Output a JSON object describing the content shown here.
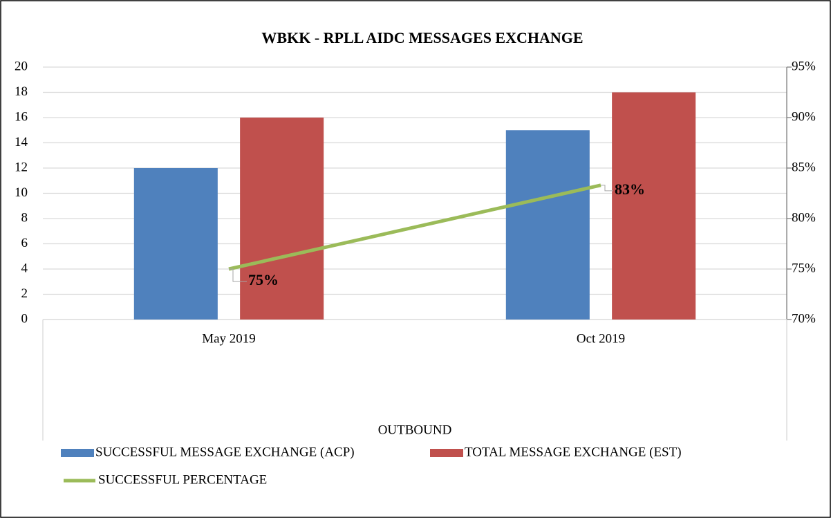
{
  "chart_data": {
    "type": "bar",
    "title": "WBKK - RPLL AIDC MESSAGES EXCHANGE",
    "x_axis_label": "OUTBOUND",
    "categories": [
      "May 2019",
      "Oct 2019"
    ],
    "series": [
      {
        "name": "SUCCESSFUL MESSAGE EXCHANGE (ACP)",
        "color": "#4f81bd",
        "values": [
          12,
          15
        ]
      },
      {
        "name": "TOTAL MESSAGE EXCHANGE (EST)",
        "color": "#c0504d",
        "values": [
          16,
          18
        ]
      },
      {
        "name": "SUCCESSFUL PERCENTAGE",
        "color": "#9bbb59",
        "type": "line",
        "axis": "y2",
        "values": [
          75,
          83.3
        ],
        "value_labels": [
          "75%",
          "83%"
        ]
      }
    ],
    "ylim": [
      0,
      20
    ],
    "yticks": [
      0,
      2,
      4,
      6,
      8,
      10,
      12,
      14,
      16,
      18,
      20
    ],
    "y2lim": [
      70,
      95
    ],
    "y2ticks": [
      {
        "value": 70,
        "label": "70%"
      },
      {
        "value": 75,
        "label": "75%"
      },
      {
        "value": 80,
        "label": "80%"
      },
      {
        "value": 85,
        "label": "85%"
      },
      {
        "value": 90,
        "label": "90%"
      },
      {
        "value": 95,
        "label": "95%"
      }
    ],
    "grid": true
  }
}
